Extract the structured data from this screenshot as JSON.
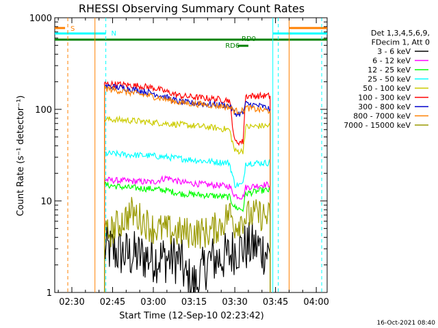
{
  "chart_data": {
    "type": "line",
    "title": "RHESSI Observing Summary Count Rates",
    "xlabel": "Start Time (12-Sep-10 02:23:42)",
    "ylabel": "Count Rate (s⁻¹ detector⁻¹)",
    "y_scale": "log",
    "ylim": [
      1,
      1000
    ],
    "xlim_minutes": [
      23.7,
      124
    ],
    "x_ticks": [
      {
        "label": "02:30",
        "minute": 30
      },
      {
        "label": "02:45",
        "minute": 45
      },
      {
        "label": "03:00",
        "minute": 60
      },
      {
        "label": "03:15",
        "minute": 75
      },
      {
        "label": "03:30",
        "minute": 90
      },
      {
        "label": "03:45",
        "minute": 105
      },
      {
        "label": "04:00",
        "minute": 120
      }
    ],
    "y_ticks": [
      {
        "label": "1",
        "value": 1
      },
      {
        "label": "10",
        "value": 10
      },
      {
        "label": "100",
        "value": 100
      },
      {
        "label": "1000",
        "value": 1000
      }
    ],
    "legend": {
      "placement": "right",
      "header_lines": [
        "Det 1,3,4,5,6,9,",
        "FDecim 1, Att 0"
      ]
    },
    "series": [
      {
        "name": "3 - 6 keV",
        "color": "#000000",
        "points": [
          [
            42,
            3.0
          ],
          [
            50,
            2.6
          ],
          [
            60,
            2.4
          ],
          [
            70,
            2.3
          ],
          [
            72,
            1.4
          ],
          [
            76,
            1.2
          ],
          [
            80,
            2.2
          ],
          [
            88,
            2.5
          ],
          [
            90,
            3.0
          ],
          [
            98,
            3.2
          ],
          [
            103,
            2.6
          ]
        ]
      },
      {
        "name": "6 - 12 keV",
        "color": "#ff00ff",
        "points": [
          [
            42,
            17
          ],
          [
            50,
            16.5
          ],
          [
            60,
            16
          ],
          [
            65,
            18
          ],
          [
            70,
            16
          ],
          [
            80,
            15
          ],
          [
            88,
            14.5
          ],
          [
            90,
            11.5
          ],
          [
            93,
            11
          ],
          [
            94,
            14
          ],
          [
            100,
            15
          ],
          [
            103,
            15
          ]
        ]
      },
      {
        "name": "12 - 25 keV",
        "color": "#00ff00",
        "points": [
          [
            42,
            15
          ],
          [
            50,
            14
          ],
          [
            60,
            13.5
          ],
          [
            65,
            13
          ],
          [
            70,
            12
          ],
          [
            80,
            11.5
          ],
          [
            88,
            11
          ],
          [
            90,
            8.5
          ],
          [
            93,
            8
          ],
          [
            94,
            12
          ],
          [
            100,
            13
          ],
          [
            103,
            13
          ]
        ]
      },
      {
        "name": "25 - 50 keV",
        "color": "#00ffff",
        "points": [
          [
            42,
            33
          ],
          [
            50,
            32
          ],
          [
            60,
            31
          ],
          [
            70,
            29
          ],
          [
            80,
            27
          ],
          [
            88,
            26
          ],
          [
            90,
            15
          ],
          [
            93,
            15
          ],
          [
            94,
            26
          ],
          [
            100,
            26
          ],
          [
            103,
            26
          ]
        ]
      },
      {
        "name": "50 - 100 keV",
        "color": "#cccc00",
        "points": [
          [
            42,
            78
          ],
          [
            50,
            76
          ],
          [
            60,
            72
          ],
          [
            70,
            68
          ],
          [
            80,
            64
          ],
          [
            88,
            60
          ],
          [
            90,
            35
          ],
          [
            93,
            35
          ],
          [
            94,
            64
          ],
          [
            100,
            66
          ],
          [
            103,
            66
          ]
        ]
      },
      {
        "name": "100 - 300 keV",
        "color": "#ff0000",
        "points": [
          [
            42,
            190
          ],
          [
            50,
            185
          ],
          [
            55,
            180
          ],
          [
            58,
            175
          ],
          [
            60,
            172
          ],
          [
            62,
            165
          ],
          [
            70,
            140
          ],
          [
            80,
            132
          ],
          [
            88,
            126
          ],
          [
            90,
            44
          ],
          [
            93,
            44
          ],
          [
            94,
            140
          ],
          [
            100,
            140
          ],
          [
            103,
            140
          ]
        ]
      },
      {
        "name": "300 - 800 keV",
        "color": "#0000cc",
        "points": [
          [
            42,
            180
          ],
          [
            50,
            170
          ],
          [
            60,
            150
          ],
          [
            70,
            120
          ],
          [
            80,
            114
          ],
          [
            88,
            110
          ],
          [
            90,
            90
          ],
          [
            93,
            90
          ],
          [
            94,
            115
          ],
          [
            100,
            108
          ],
          [
            103,
            100
          ]
        ]
      },
      {
        "name": "800 - 7000 keV",
        "color": "#ff8000",
        "points": [
          [
            42,
            170
          ],
          [
            50,
            155
          ],
          [
            60,
            138
          ],
          [
            70,
            118
          ],
          [
            80,
            112
          ],
          [
            88,
            106
          ],
          [
            90,
            96
          ],
          [
            93,
            96
          ],
          [
            94,
            104
          ],
          [
            100,
            98
          ],
          [
            103,
            96
          ]
        ]
      },
      {
        "name": "7000 - 15000 keV",
        "color": "#999900",
        "points": [
          [
            42,
            4.0
          ],
          [
            47,
            5.5
          ],
          [
            52,
            7.5
          ],
          [
            55,
            6.5
          ],
          [
            60,
            5.0
          ],
          [
            70,
            4.5
          ],
          [
            80,
            4.5
          ],
          [
            85,
            5.5
          ],
          [
            88,
            7.5
          ],
          [
            90,
            5.5
          ],
          [
            93,
            6.5
          ],
          [
            96,
            7.0
          ],
          [
            100,
            7.0
          ],
          [
            103,
            6.5
          ]
        ]
      }
    ],
    "flags": [
      {
        "label": "S",
        "color": "#ff8000",
        "segments": [
          [
            23.7,
            27.5
          ],
          [
            110,
            124
          ]
        ],
        "level": "top"
      },
      {
        "label": "N",
        "color": "#00ffff",
        "segments": [
          [
            23.7,
            42.5
          ],
          [
            104,
            124
          ]
        ],
        "level": "second"
      },
      {
        "label": "RD0",
        "color": "#008000",
        "segments": [
          [
            23.7,
            124
          ]
        ],
        "level": "third"
      },
      {
        "label": "RD6",
        "color": "#008000",
        "segments": [
          [
            91,
            95
          ]
        ],
        "level": "fourth"
      }
    ],
    "vertical_lines": [
      {
        "minute": 28.5,
        "color": "#ff8000",
        "style": "dashed"
      },
      {
        "minute": 38.5,
        "color": "#ff8000",
        "style": "solid"
      },
      {
        "minute": 42.5,
        "color": "#00ffff",
        "style": "dashed"
      },
      {
        "minute": 104,
        "color": "#00ffff",
        "style": "solid"
      },
      {
        "minute": 106,
        "color": "#00ffff",
        "style": "dashed"
      },
      {
        "minute": 110,
        "color": "#ff8000",
        "style": "solid"
      },
      {
        "minute": 122,
        "color": "#00ffff",
        "style": "dashed"
      }
    ]
  },
  "footer": {
    "timestamp": "16-Oct-2021 08:40"
  }
}
